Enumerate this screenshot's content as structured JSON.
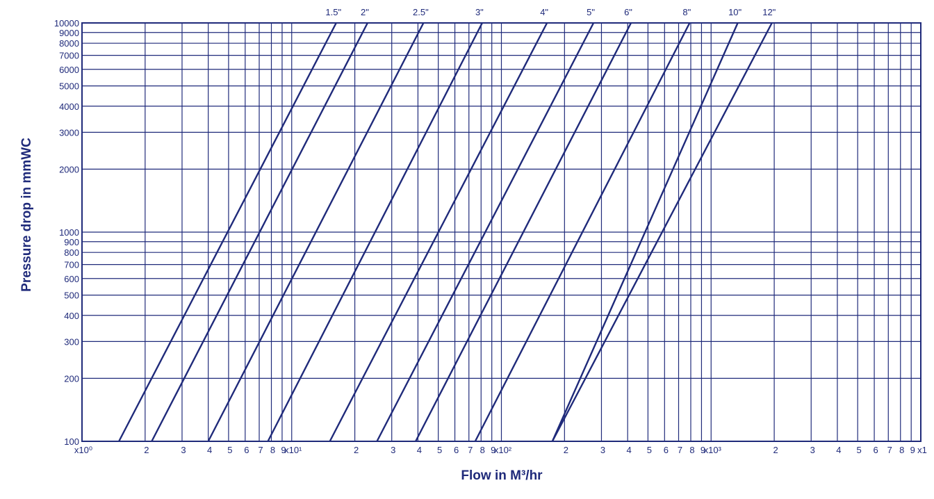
{
  "chart_data": {
    "type": "line",
    "title": "",
    "xlabel": "Flow in M³/hr",
    "ylabel": "Pressure drop in mmWC",
    "xscale": "log",
    "yscale": "log",
    "xlim": [
      1,
      10000
    ],
    "ylim": [
      100,
      10000
    ],
    "grid": true,
    "colors": {
      "line": "#1f2a7a",
      "grid": "#1f2a7a",
      "text": "#1f2a7a",
      "background": "#ffffff"
    },
    "x_tick_labels": [
      "x10⁰",
      "2",
      "3",
      "4",
      "5",
      "6",
      "7",
      "8",
      "9",
      "x10¹",
      "2",
      "3",
      "4",
      "5",
      "6",
      "7",
      "8",
      "9",
      "x10²",
      "2",
      "3",
      "4",
      "5",
      "6",
      "7",
      "8",
      "9",
      "x10³",
      "2",
      "3",
      "4",
      "5",
      "6",
      "7",
      "8",
      "9",
      "x1"
    ],
    "y_tick_labels": [
      "100",
      "200",
      "300",
      "400",
      "500",
      "600",
      "700",
      "800",
      "900",
      "1000",
      "2000",
      "3000",
      "4000",
      "5000",
      "6000",
      "7000",
      "8000",
      "9000",
      "10000"
    ],
    "series": [
      {
        "name": "1.5\"",
        "points": [
          [
            1.5,
            100
          ],
          [
            16.3,
            10000
          ]
        ]
      },
      {
        "name": "2\"",
        "points": [
          [
            2.15,
            100
          ],
          [
            23.0,
            10000
          ]
        ]
      },
      {
        "name": "2.5\"",
        "points": [
          [
            4.0,
            100
          ],
          [
            42.5,
            10000
          ]
        ]
      },
      {
        "name": "3\"",
        "points": [
          [
            7.7,
            100
          ],
          [
            81,
            10000
          ]
        ]
      },
      {
        "name": "4\"",
        "points": [
          [
            15.2,
            100
          ],
          [
            165,
            10000
          ]
        ]
      },
      {
        "name": "5\"",
        "points": [
          [
            25.5,
            100
          ],
          [
            275,
            10000
          ]
        ]
      },
      {
        "name": "6\"",
        "points": [
          [
            39,
            100
          ],
          [
            415,
            10000
          ]
        ]
      },
      {
        "name": "8\"",
        "points": [
          [
            75,
            100
          ],
          [
            790,
            10000
          ]
        ]
      },
      {
        "name": "10\"",
        "points": [
          [
            175,
            100
          ],
          [
            1340,
            10000
          ]
        ]
      },
      {
        "name": "12\"",
        "points": [
          [
            175,
            100
          ],
          [
            1950,
            10000
          ]
        ]
      }
    ]
  }
}
